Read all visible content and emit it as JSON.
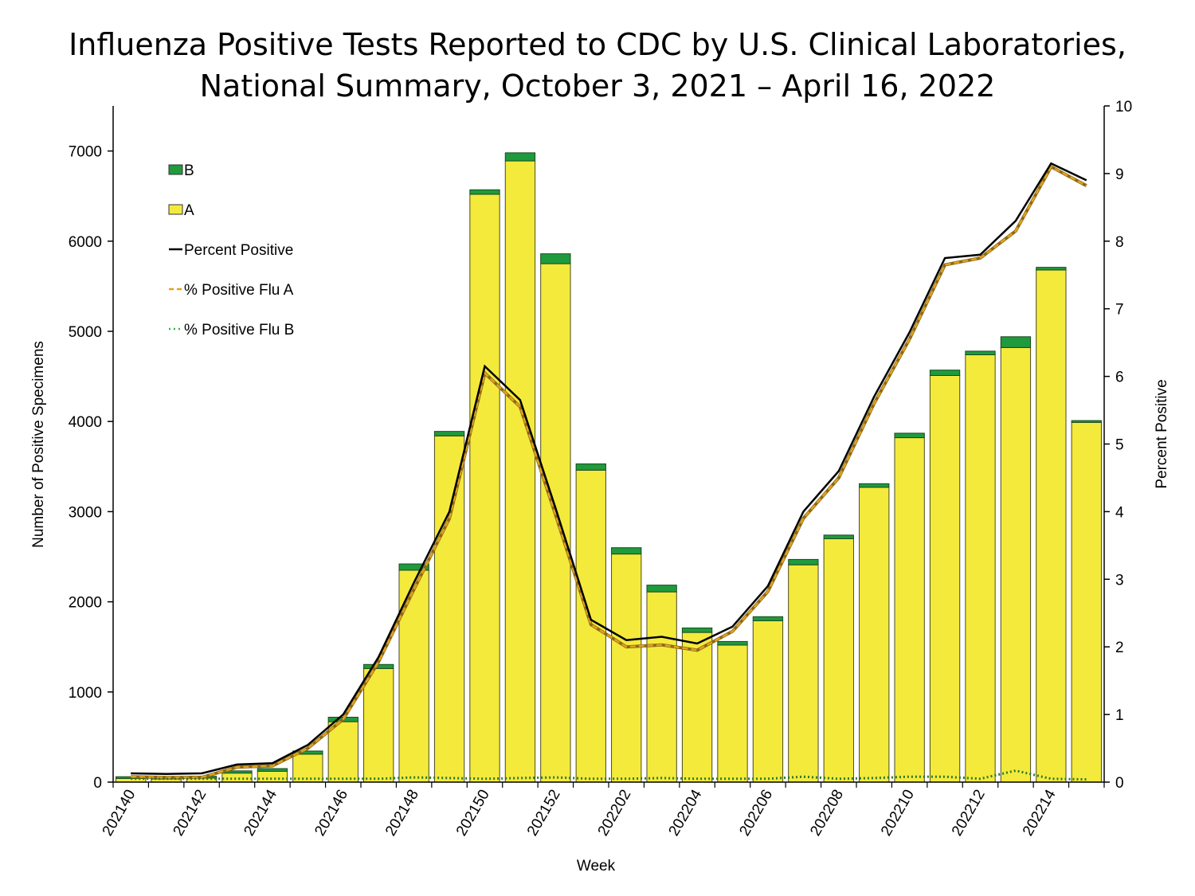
{
  "chart_data": {
    "type": "bar",
    "title_line1": "Influenza Positive Tests Reported to CDC by U.S. Clinical Laboratories,",
    "title_line2": "National Summary, October 3, 2021 – April 16, 2022",
    "xlabel": "Week",
    "ylabel": "Number of Positive Specimens",
    "y2label": "Percent Positive",
    "ylim": [
      0,
      7500
    ],
    "y2lim": [
      0,
      10
    ],
    "yticks": [
      "0",
      "1000",
      "2000",
      "3000",
      "4000",
      "5000",
      "6000",
      "7000"
    ],
    "y2ticks": [
      "0",
      "1",
      "2",
      "3",
      "4",
      "5",
      "6",
      "7",
      "8",
      "9",
      "10"
    ],
    "categories": [
      "202140",
      "202141",
      "202142",
      "202143",
      "202144",
      "202145",
      "202146",
      "202147",
      "202148",
      "202149",
      "202150",
      "202151",
      "202152",
      "202201",
      "202202",
      "202203",
      "202204",
      "202205",
      "202206",
      "202207",
      "202208",
      "202209",
      "202210",
      "202211",
      "202212",
      "202213",
      "202214",
      "202215"
    ],
    "tick_labels": [
      "202140",
      "202142",
      "202144",
      "202146",
      "202148",
      "202150",
      "202152",
      "202202",
      "202204",
      "202206",
      "202208",
      "202210",
      "202212",
      "202214"
    ],
    "series": [
      {
        "name": "A",
        "type": "bar",
        "color": "#f4ea3c",
        "values": [
          40,
          35,
          45,
          100,
          120,
          310,
          670,
          1260,
          2350,
          3840,
          6520,
          6890,
          5750,
          3460,
          2530,
          2110,
          1660,
          1520,
          1790,
          2410,
          2700,
          3270,
          3820,
          4510,
          4740,
          4820,
          5680,
          3990
        ]
      },
      {
        "name": "B",
        "type": "bar",
        "color": "#1f9a3d",
        "values": [
          20,
          15,
          20,
          25,
          30,
          35,
          50,
          45,
          70,
          50,
          50,
          90,
          110,
          70,
          70,
          75,
          50,
          40,
          45,
          60,
          40,
          40,
          50,
          60,
          40,
          120,
          30,
          20
        ]
      },
      {
        "name": "Percent Positive",
        "type": "line",
        "axis": "right",
        "color": "#000000",
        "values": [
          0.13,
          0.12,
          0.13,
          0.26,
          0.28,
          0.55,
          1.0,
          1.85,
          2.95,
          4.0,
          6.15,
          5.65,
          4.05,
          2.4,
          2.1,
          2.15,
          2.05,
          2.3,
          2.9,
          4.0,
          4.6,
          5.7,
          6.65,
          7.75,
          7.8,
          8.3,
          9.15,
          8.9
        ]
      },
      {
        "name": "% Positive Flu A",
        "type": "line",
        "axis": "right",
        "color": "#e3a21a",
        "dash": "dashed",
        "values": [
          0.08,
          0.07,
          0.07,
          0.22,
          0.24,
          0.5,
          0.93,
          1.78,
          2.85,
          3.9,
          6.05,
          5.55,
          3.95,
          2.33,
          2.0,
          2.03,
          1.95,
          2.23,
          2.82,
          3.9,
          4.5,
          5.6,
          6.55,
          7.65,
          7.75,
          8.15,
          9.1,
          8.82
        ]
      },
      {
        "name": "% Positive Flu B",
        "type": "line",
        "axis": "right",
        "color": "#3ab53a",
        "dash": "dotted",
        "values": [
          0.05,
          0.05,
          0.05,
          0.05,
          0.05,
          0.05,
          0.05,
          0.05,
          0.07,
          0.06,
          0.05,
          0.06,
          0.07,
          0.05,
          0.05,
          0.06,
          0.05,
          0.05,
          0.05,
          0.08,
          0.05,
          0.06,
          0.08,
          0.08,
          0.05,
          0.17,
          0.05,
          0.04
        ]
      }
    ],
    "legend": [
      {
        "label": "B",
        "kind": "box",
        "color": "#1f9a3d"
      },
      {
        "label": "A",
        "kind": "box",
        "color": "#f4ea3c"
      },
      {
        "label": "Percent Positive",
        "kind": "line",
        "color": "#000000",
        "dash": ""
      },
      {
        "label": "% Positive Flu A",
        "kind": "line",
        "color": "#e3a21a",
        "dash": "6,4"
      },
      {
        "label": "% Positive Flu B",
        "kind": "line",
        "color": "#3ab53a",
        "dash": "2,4"
      }
    ]
  }
}
